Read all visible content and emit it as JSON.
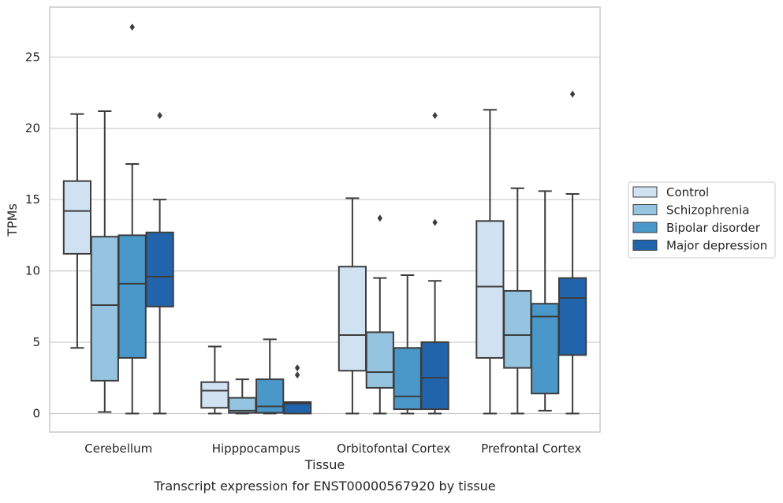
{
  "caption": "Transcript expression for ENST00000567920 by tissue",
  "chart_data": {
    "type": "box",
    "xlabel": "Tissue",
    "ylabel": "TPMs",
    "ylim": [
      -1.3,
      28.5
    ],
    "yticks": [
      0,
      5,
      10,
      15,
      20,
      25
    ],
    "grid": "horizontal",
    "legend_position": "right",
    "categories": [
      "Cerebellum",
      "Hipppocampus",
      "Orbitofontal Cortex",
      "Prefrontal Cortex"
    ],
    "series": [
      {
        "name": "Control",
        "color": "#d0e1f2",
        "boxes": [
          {
            "whisker_low": 4.6,
            "q1": 11.2,
            "median": 14.2,
            "q3": 16.3,
            "whisker_high": 21.0,
            "outliers": []
          },
          {
            "whisker_low": 0.0,
            "q1": 0.4,
            "median": 1.6,
            "q3": 2.2,
            "whisker_high": 4.7,
            "outliers": []
          },
          {
            "whisker_low": 0.0,
            "q1": 3.0,
            "median": 5.5,
            "q3": 10.3,
            "whisker_high": 15.1,
            "outliers": []
          },
          {
            "whisker_low": 0.0,
            "q1": 3.9,
            "median": 8.9,
            "q3": 13.5,
            "whisker_high": 21.3,
            "outliers": []
          }
        ]
      },
      {
        "name": "Schizophrenia",
        "color": "#94c4df",
        "boxes": [
          {
            "whisker_low": 0.1,
            "q1": 2.3,
            "median": 7.6,
            "q3": 12.4,
            "whisker_high": 21.2,
            "outliers": []
          },
          {
            "whisker_low": 0.0,
            "q1": 0.05,
            "median": 0.2,
            "q3": 1.1,
            "whisker_high": 2.4,
            "outliers": []
          },
          {
            "whisker_low": 0.0,
            "q1": 1.8,
            "median": 2.9,
            "q3": 5.7,
            "whisker_high": 9.5,
            "outliers": [
              13.7
            ]
          },
          {
            "whisker_low": 0.0,
            "q1": 3.2,
            "median": 5.5,
            "q3": 8.6,
            "whisker_high": 15.8,
            "outliers": []
          }
        ]
      },
      {
        "name": "Bipolar disorder",
        "color": "#4a98c9",
        "boxes": [
          {
            "whisker_low": 0.0,
            "q1": 3.9,
            "median": 9.1,
            "q3": 12.5,
            "whisker_high": 17.5,
            "outliers": [
              27.1
            ]
          },
          {
            "whisker_low": 0.0,
            "q1": 0.05,
            "median": 0.5,
            "q3": 2.4,
            "whisker_high": 5.2,
            "outliers": []
          },
          {
            "whisker_low": 0.0,
            "q1": 0.3,
            "median": 1.2,
            "q3": 4.6,
            "whisker_high": 9.7,
            "outliers": []
          },
          {
            "whisker_low": 0.2,
            "q1": 1.4,
            "median": 6.8,
            "q3": 7.7,
            "whisker_high": 15.6,
            "outliers": []
          }
        ]
      },
      {
        "name": "Major depression",
        "color": "#2164ab",
        "boxes": [
          {
            "whisker_low": 0.0,
            "q1": 7.5,
            "median": 9.6,
            "q3": 12.7,
            "whisker_high": 15.0,
            "outliers": [
              20.9
            ]
          },
          {
            "whisker_low": 0.0,
            "q1": 0.0,
            "median": 0.7,
            "q3": 0.8,
            "whisker_high": 0.8,
            "outliers": [
              2.7,
              3.2
            ]
          },
          {
            "whisker_low": 0.0,
            "q1": 0.3,
            "median": 2.5,
            "q3": 5.0,
            "whisker_high": 9.3,
            "outliers": [
              13.4,
              20.9
            ]
          },
          {
            "whisker_low": 0.0,
            "q1": 4.1,
            "median": 8.1,
            "q3": 9.5,
            "whisker_high": 15.4,
            "outliers": [
              22.4
            ]
          }
        ]
      }
    ]
  }
}
